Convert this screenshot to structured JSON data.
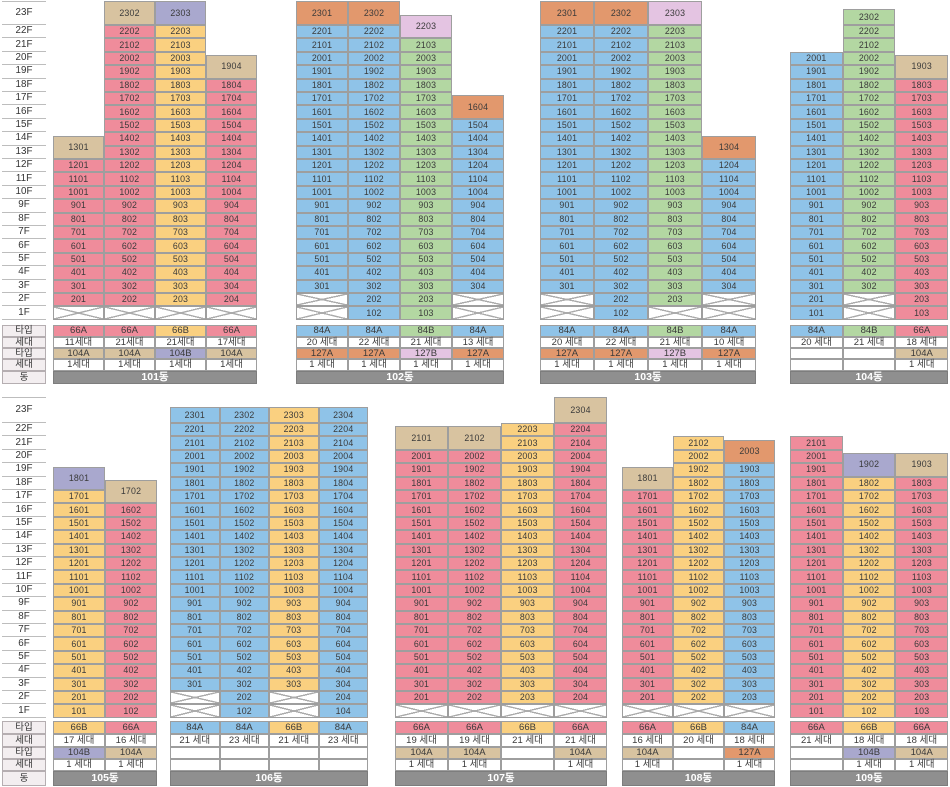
{
  "palette": {
    "66A": "#ef8c9b",
    "66B": "#fad080",
    "84A": "#8fc3e8",
    "84B": "#b3d7a2",
    "104A": "#d8c3a0",
    "104B": "#a9a8ce",
    "127A": "#e2986d",
    "127B": "#e4c4e2",
    "bar_bg": "#8f8f8f",
    "label_bg": "#f3eef0",
    "hatch_line": "#ababab",
    "grid_border": "#9e9e9e"
  },
  "floor_labels": [
    "23F",
    "22F",
    "21F",
    "20F",
    "19F",
    "18F",
    "17F",
    "16F",
    "15F",
    "14F",
    "13F",
    "12F",
    "11F",
    "10F",
    "9F",
    "8F",
    "7F",
    "6F",
    "5F",
    "4F",
    "3F",
    "2F",
    "1F"
  ],
  "footer_labels": [
    "타입",
    "세대",
    "타입",
    "세대",
    "동"
  ],
  "sections": [
    {
      "buildings": [
        {
          "name": "101동",
          "columns": [
            {
              "type": "66A",
              "from": 2,
              "to": 12,
              "top_floor": 13,
              "top_type": "104A",
              "hatched": [
                1
              ],
              "footer": [
                "66A",
                "11세대",
                "104A",
                "1세대"
              ]
            },
            {
              "type": "66A",
              "from": 2,
              "to": 22,
              "top_floor": 23,
              "top_type": "104A",
              "hatched": [
                1
              ],
              "footer": [
                "66A",
                "21세대",
                "104A",
                "1세대"
              ]
            },
            {
              "type": "66B",
              "from": 2,
              "to": 22,
              "top_floor": 23,
              "top_type": "104B",
              "hatched": [
                1
              ],
              "footer": [
                "66B",
                "21세대",
                "104B",
                "1세대"
              ]
            },
            {
              "type": "66A",
              "from": 2,
              "to": 18,
              "top_floor": 19,
              "top_type": "104A",
              "hatched": [
                1
              ],
              "footer": [
                "66A",
                "17세대",
                "104A",
                "1세대"
              ]
            }
          ]
        },
        {
          "name": "102동",
          "columns": [
            {
              "type": "84A",
              "from": 3,
              "to": 22,
              "top_floor": 23,
              "top_type": "127A",
              "hatched": [
                1,
                2
              ],
              "footer": [
                "84A",
                "20 세대",
                "127A",
                "1 세대"
              ]
            },
            {
              "type": "84A",
              "from": 1,
              "to": 22,
              "top_floor": 23,
              "top_type": "127A",
              "hatched": [],
              "footer": [
                "84A",
                "22 세대",
                "127A",
                "1 세대"
              ]
            },
            {
              "type": "84B",
              "from": 1,
              "to": 21,
              "top_floor": 22,
              "top_type": "127B",
              "hatched": [],
              "footer": [
                "84B",
                "21 세대",
                "127B",
                "1 세대"
              ]
            },
            {
              "type": "84A",
              "from": 3,
              "to": 15,
              "top_floor": 16,
              "top_type": "127A",
              "hatched": [
                1,
                2
              ],
              "footer": [
                "84A",
                "13 세대",
                "127A",
                "1 세대"
              ]
            }
          ]
        },
        {
          "name": "103동",
          "columns": [
            {
              "type": "84A",
              "from": 3,
              "to": 22,
              "top_floor": 23,
              "top_type": "127A",
              "hatched": [
                1,
                2
              ],
              "footer": [
                "84A",
                "20 세대",
                "127A",
                "1 세대"
              ]
            },
            {
              "type": "84A",
              "from": 1,
              "to": 22,
              "top_floor": 23,
              "top_type": "127A",
              "hatched": [],
              "footer": [
                "84A",
                "22 세대",
                "127A",
                "1 세대"
              ]
            },
            {
              "type": "84B",
              "from": 2,
              "to": 22,
              "top_floor": 23,
              "top_type": "127B",
              "hatched": [
                1
              ],
              "footer": [
                "84B",
                "21 세대",
                "127B",
                "1 세대"
              ]
            },
            {
              "type": "84A",
              "from": 3,
              "to": 12,
              "top_floor": 13,
              "top_type": "127A",
              "hatched": [
                1,
                2
              ],
              "footer": [
                "84A",
                "10 세대",
                "127A",
                "1 세대"
              ]
            }
          ]
        },
        {
          "name": "104동",
          "columns": [
            {
              "type": "84A",
              "from": 1,
              "to": 20,
              "hatched": [],
              "footer": [
                "84A",
                "20 세대",
                "",
                ""
              ]
            },
            {
              "type": "84B",
              "from": 3,
              "to": 23,
              "hatched": [
                1,
                2
              ],
              "footer": [
                "84B",
                "21 세대",
                "",
                ""
              ]
            },
            {
              "type": "66A",
              "from": 1,
              "to": 18,
              "top_floor": 19,
              "top_type": "104A",
              "hatched": [],
              "footer": [
                "66A",
                "18 세대",
                "104A",
                "1 세대"
              ]
            }
          ]
        }
      ]
    },
    {
      "buildings": [
        {
          "name": "105동",
          "columns": [
            {
              "type": "66B",
              "from": 1,
              "to": 17,
              "top_floor": 18,
              "top_type": "104B",
              "hatched": [],
              "footer": [
                "66B",
                "17 세대",
                "104B",
                "1 세대"
              ]
            },
            {
              "type": "66A",
              "from": 1,
              "to": 16,
              "top_floor": 17,
              "top_type": "104A",
              "hatched": [],
              "footer": [
                "66A",
                "16 세대",
                "104A",
                "1 세대"
              ]
            }
          ]
        },
        {
          "name": "106동",
          "columns": [
            {
              "type": "84A",
              "from": 3,
              "to": 23,
              "hatched": [
                1,
                2
              ],
              "footer": [
                "84A",
                "21 세대",
                "",
                ""
              ]
            },
            {
              "type": "84A",
              "from": 1,
              "to": 23,
              "hatched": [],
              "footer": [
                "84A",
                "23 세대",
                "",
                ""
              ]
            },
            {
              "type": "66B",
              "from": 3,
              "to": 23,
              "hatched": [
                1,
                2
              ],
              "footer": [
                "66B",
                "21 세대",
                "",
                ""
              ]
            },
            {
              "type": "84A",
              "from": 1,
              "to": 23,
              "hatched": [],
              "footer": [
                "84A",
                "23 세대",
                "",
                ""
              ]
            }
          ]
        },
        {
          "name": "107동",
          "columns": [
            {
              "type": "66A",
              "from": 2,
              "to": 20,
              "top_floor": 21,
              "top_type": "104A",
              "hatched": [
                1
              ],
              "footer": [
                "66A",
                "19 세대",
                "104A",
                "1 세대"
              ]
            },
            {
              "type": "66A",
              "from": 2,
              "to": 20,
              "top_floor": 21,
              "top_type": "104A",
              "hatched": [
                1
              ],
              "footer": [
                "66A",
                "19 세대",
                "104A",
                "1 세대"
              ]
            },
            {
              "type": "66B",
              "from": 2,
              "to": 22,
              "hatched": [
                1
              ],
              "footer": [
                "66B",
                "21 세대",
                "",
                ""
              ]
            },
            {
              "type": "66A",
              "from": 2,
              "to": 22,
              "top_floor": 23,
              "top_type": "104A",
              "hatched": [
                1
              ],
              "footer": [
                "66A",
                "21 세대",
                "104A",
                "1 세대"
              ]
            }
          ]
        },
        {
          "name": "108동",
          "columns": [
            {
              "type": "66A",
              "from": 2,
              "to": 17,
              "top_floor": 18,
              "top_type": "104A",
              "hatched": [
                1
              ],
              "footer": [
                "66A",
                "16 세대",
                "104A",
                "1 세대"
              ]
            },
            {
              "type": "66B",
              "from": 2,
              "to": 21,
              "hatched": [
                1
              ],
              "footer": [
                "66B",
                "20 세대",
                "",
                ""
              ]
            },
            {
              "type": "84A",
              "from": 2,
              "to": 19,
              "top_floor": 20,
              "top_type": "127A",
              "hatched": [
                1
              ],
              "footer": [
                "84A",
                "18 세대",
                "127A",
                "1 세대"
              ]
            }
          ]
        },
        {
          "name": "109동",
          "columns": [
            {
              "type": "66A",
              "from": 1,
              "to": 21,
              "hatched": [],
              "footer": [
                "66A",
                "21 세대",
                "",
                ""
              ]
            },
            {
              "type": "66B",
              "from": 1,
              "to": 18,
              "top_floor": 19,
              "top_type": "104B",
              "hatched": [],
              "footer": [
                "66B",
                "18 세대",
                "104B",
                "1 세대"
              ]
            },
            {
              "type": "66A",
              "from": 1,
              "to": 18,
              "top_floor": 19,
              "top_type": "104A",
              "hatched": [],
              "footer": [
                "66A",
                "18 세대",
                "104A",
                "1 세대"
              ]
            }
          ]
        }
      ]
    }
  ]
}
